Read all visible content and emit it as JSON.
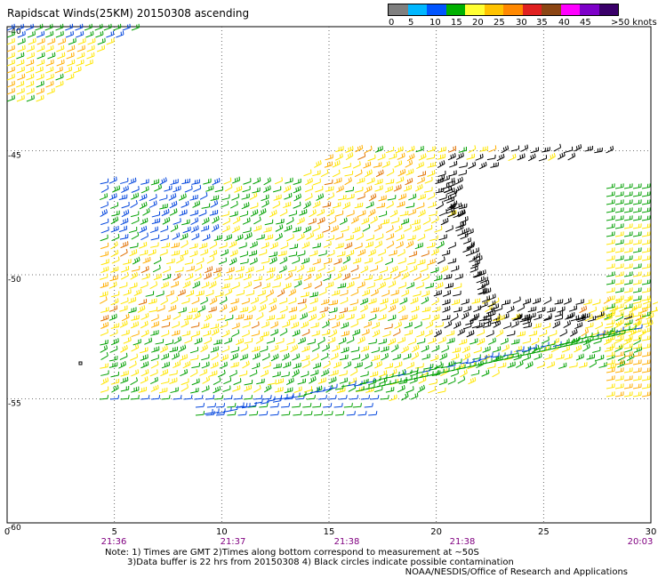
{
  "title": "Rapidscat Winds(25KM) 20150308 ascending",
  "legend": {
    "labels": [
      "0",
      "5",
      "10",
      "15",
      "20",
      "25",
      "30",
      "35",
      "40",
      "45",
      ">50 knots"
    ],
    "colors": [
      "#7f7f7f",
      "#00b7ff",
      "#0055ff",
      "#00b000",
      "#ffff33",
      "#ffc300",
      "#ff8800",
      "#e02020",
      "#8b4513",
      "#ff00ff",
      "#7d00c8",
      "#3a006a"
    ]
  },
  "axes": {
    "x_ticks": [
      "0",
      "5",
      "10",
      "15",
      "20",
      "25",
      "30"
    ],
    "y_ticks": [
      "-40",
      "-45",
      "-50",
      "-55",
      "-60"
    ],
    "time_labels": [
      "21:36",
      "21:37",
      "21:38",
      "21:38",
      "20:03"
    ],
    "xlim": [
      0,
      30
    ],
    "ylim": [
      -60,
      -40
    ],
    "grid": true
  },
  "notes": {
    "line1": "Note: 1) Times are GMT 2)Times along bottom correspond to measurement at ~50S",
    "line2": "3)Data buffer is 22 hrs from 20150308 4) Black circles indicate possible contamination",
    "credit": "NOAA/NESDIS/Office of Research and Applications"
  },
  "wind_colors": {
    "calm": "#7f7f7f",
    "blue": "#0044dd",
    "green": "#00a000",
    "yellow": "#ffe600",
    "orange": "#ffae00",
    "dark_orange": "#e07000",
    "black": "#000000"
  }
}
